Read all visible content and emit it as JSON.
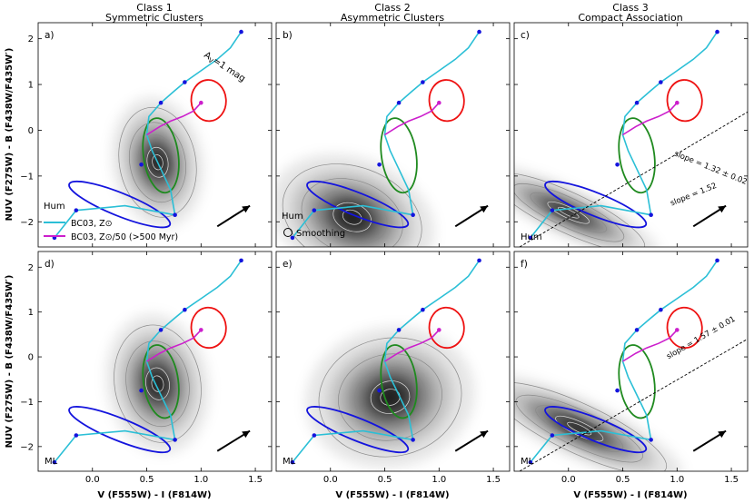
{
  "figure": {
    "ylabel": "NUV (F275W) - B (F438W/F435W′)",
    "xlabel": "V (F555W) - I (F814W)"
  },
  "columns": [
    {
      "class_label": "Class 1",
      "subtitle": "Symmetric Clusters"
    },
    {
      "class_label": "Class 2",
      "subtitle": "Asymmetric Clusters"
    },
    {
      "class_label": "Class 3",
      "subtitle": "Compact Association"
    }
  ],
  "rows": [
    {
      "sample": "Hum"
    },
    {
      "sample": "ML"
    }
  ],
  "legend": {
    "title": "Hum",
    "solar_label": "BC03, Z⊙",
    "subsolar_label": "BC03, Z⊙/50 (>500 Myr)",
    "smoothing_label": "Smoothing"
  },
  "reddening_label": "A",
  "reddening_sub": "V",
  "reddening_value": "=1 mag",
  "colors": {
    "solar": "#2bbfd6",
    "subsolar": "#cc1fcc",
    "class1_contour": "#1f8a1f",
    "class2_contour": "#ee1111",
    "class3_contour": "#1414dd",
    "model_points": "#1414dd"
  },
  "chart_data": [
    {
      "type": "scatter",
      "panel": "a)",
      "title": "Class 1 Symmetric Clusters",
      "sample": "Hum",
      "xlabel": "V (F555W) - I (F814W)",
      "ylabel": "NUV (F275W) - B (F438W/F435W′)",
      "xlim": [
        -0.5,
        1.65
      ],
      "ylim": [
        2.35,
        -2.55
      ],
      "xticks": [
        0.0,
        0.5,
        1.0,
        1.5
      ],
      "yticks": [
        -2,
        -1,
        0,
        1,
        2
      ],
      "density_peak": [
        0.6,
        -0.7
      ],
      "density_spread": [
        0.16,
        0.55
      ],
      "annotations": [
        "A_V=1 mag arrow"
      ]
    },
    {
      "type": "scatter",
      "panel": "b)",
      "title": "Class 2 Asymmetric Clusters",
      "sample": "Hum",
      "xlabel": "V (F555W) - I (F814W)",
      "xlim": [
        -0.5,
        1.65
      ],
      "ylim": [
        2.35,
        -2.55
      ],
      "xticks": [
        0.0,
        0.5,
        1.0,
        1.5
      ],
      "yticks": [
        -2,
        -1,
        0,
        1,
        2
      ],
      "density_peak": [
        0.2,
        -1.9
      ],
      "density_spread": [
        0.3,
        0.5
      ]
    },
    {
      "type": "scatter",
      "panel": "c)",
      "title": "Class 3 Compact Association",
      "sample": "Hum",
      "xlabel": "V (F555W) - I (F814W)",
      "xlim": [
        -0.5,
        1.65
      ],
      "ylim": [
        2.35,
        -2.55
      ],
      "xticks": [
        0.0,
        0.5,
        1.0,
        1.5
      ],
      "yticks": [
        -2,
        -1,
        0,
        1,
        2
      ],
      "density_peak": [
        0.0,
        -1.8
      ],
      "density_spread": [
        0.35,
        0.2
      ],
      "fits": [
        {
          "label": "slope = 1.52"
        },
        {
          "label": "slope = 1.32 ± 0.02"
        }
      ]
    },
    {
      "type": "scatter",
      "panel": "d)",
      "title": "Class 1 Symmetric Clusters",
      "sample": "ML",
      "xlabel": "V (F555W) - I (F814W)",
      "ylabel": "NUV (F275W) - B (F438W/F435W′)",
      "xlim": [
        -0.5,
        1.65
      ],
      "ylim": [
        2.35,
        -2.55
      ],
      "xticks": [
        0.0,
        0.5,
        1.0,
        1.5
      ],
      "yticks": [
        -2,
        -1,
        0,
        1,
        2
      ],
      "density_peak": [
        0.6,
        -0.6
      ],
      "density_spread": [
        0.18,
        0.6
      ]
    },
    {
      "type": "scatter",
      "panel": "e)",
      "title": "Class 2 Asymmetric Clusters",
      "sample": "ML",
      "xlabel": "V (F555W) - I (F814W)",
      "xlim": [
        -0.5,
        1.65
      ],
      "ylim": [
        2.35,
        -2.55
      ],
      "xticks": [
        0.0,
        0.5,
        1.0,
        1.5
      ],
      "yticks": [
        -2,
        -1,
        0,
        1,
        2
      ],
      "density_peak": [
        0.55,
        -0.9
      ],
      "density_spread": [
        0.3,
        0.6
      ]
    },
    {
      "type": "scatter",
      "panel": "f)",
      "title": "Class 3 Compact Association",
      "sample": "ML",
      "xlabel": "V (F555W) - I (F814W)",
      "xlim": [
        -0.5,
        1.65
      ],
      "ylim": [
        2.35,
        -2.55
      ],
      "xticks": [
        0.0,
        0.5,
        1.0,
        1.5
      ],
      "yticks": [
        -2,
        -1,
        0,
        1,
        2
      ],
      "density_peak": [
        0.1,
        -1.6
      ],
      "density_spread": [
        0.4,
        0.25
      ],
      "fits": [
        {
          "label": "slope = 1.57 ± 0.01"
        }
      ]
    }
  ],
  "model_tracks": {
    "solar_track": [
      [
        -0.35,
        -2.35
      ],
      [
        -0.15,
        -1.75
      ],
      [
        0.3,
        -1.65
      ],
      [
        0.76,
        -1.85
      ],
      [
        0.72,
        -1.3
      ],
      [
        0.62,
        -0.8
      ],
      [
        0.55,
        -0.45
      ],
      [
        0.5,
        -0.1
      ],
      [
        0.52,
        0.3
      ],
      [
        0.63,
        0.6
      ],
      [
        0.75,
        0.85
      ],
      [
        0.85,
        1.05
      ],
      [
        1.0,
        1.3
      ],
      [
        1.15,
        1.55
      ],
      [
        1.27,
        1.8
      ],
      [
        1.37,
        2.15
      ]
    ],
    "solar_points": [
      [
        -0.35,
        -2.35
      ],
      [
        -0.15,
        -1.75
      ],
      [
        0.76,
        -1.85
      ],
      [
        0.45,
        -0.75
      ],
      [
        0.63,
        0.6
      ],
      [
        0.85,
        1.05
      ],
      [
        1.37,
        2.15
      ]
    ],
    "subsolar_track": [
      [
        0.5,
        -0.1
      ],
      [
        0.62,
        0.08
      ],
      [
        0.72,
        0.2
      ],
      [
        0.83,
        0.3
      ],
      [
        0.93,
        0.42
      ],
      [
        1.0,
        0.6
      ]
    ],
    "subsolar_points": [
      [
        1.0,
        0.6
      ]
    ],
    "reddening_arrow": {
      "from": [
        1.15,
        -2.1
      ],
      "to": [
        1.45,
        -1.65
      ]
    }
  }
}
